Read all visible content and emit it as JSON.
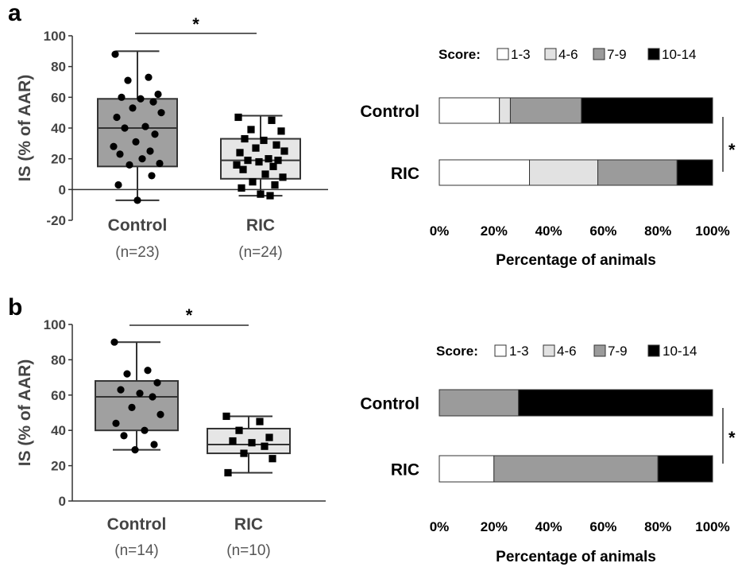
{
  "panels": [
    {
      "letter": "a",
      "significance": "*",
      "stacked_significance": "*",
      "chart_data": [
        {
          "type": "box",
          "ylabel": "IS (% of AAR)",
          "ylim": [
            -20,
            100
          ],
          "yticks": [
            -20,
            0,
            20,
            40,
            60,
            80,
            100
          ],
          "categories": [
            {
              "name": "Control",
              "n_label": "(n=23)",
              "fill": "#a0a0a0",
              "marker": "circle",
              "whisker_low": -7,
              "q1": 15,
              "median": 40,
              "q3": 59,
              "whisker_high": 90,
              "points": [
                88,
                73,
                71,
                62,
                60,
                59,
                57,
                53,
                50,
                47,
                41,
                40,
                36,
                31,
                28,
                25,
                23,
                20,
                17,
                16,
                9,
                3,
                -7
              ]
            },
            {
              "name": "RIC",
              "n_label": "(n=24)",
              "fill": "#e6e6e6",
              "marker": "square",
              "whisker_low": -4,
              "q1": 7,
              "median": 19,
              "q3": 33,
              "whisker_high": 48,
              "points": [
                47,
                45,
                39,
                38,
                33,
                32,
                29,
                27,
                25,
                24,
                20,
                19,
                19,
                18,
                16,
                15,
                13,
                10,
                8,
                5,
                3,
                1,
                -3,
                -4
              ]
            }
          ]
        },
        {
          "type": "stacked_bar_horizontal",
          "legend_title": "Score:",
          "legend": [
            "1-3",
            "4-6",
            "7-9",
            "10-14"
          ],
          "legend_colors": [
            "#ffffff",
            "#e2e2e2",
            "#9b9b9b",
            "#000000"
          ],
          "categories": [
            "Control",
            "RIC"
          ],
          "xticks": [
            "0%",
            "20%",
            "40%",
            "60%",
            "80%",
            "100%"
          ],
          "xlabel": "Percentage of animals",
          "xlim": [
            0,
            100
          ],
          "series": [
            {
              "name": "1-3",
              "values": [
                22,
                33
              ]
            },
            {
              "name": "4-6",
              "values": [
                4,
                25
              ]
            },
            {
              "name": "7-9",
              "values": [
                26,
                29
              ]
            },
            {
              "name": "10-14",
              "values": [
                48,
                13
              ]
            }
          ]
        }
      ]
    },
    {
      "letter": "b",
      "significance": "*",
      "stacked_significance": "*",
      "chart_data": [
        {
          "type": "box",
          "ylabel": "IS (% of AAR)",
          "ylim": [
            0,
            100
          ],
          "yticks": [
            0,
            20,
            40,
            60,
            80,
            100
          ],
          "categories": [
            {
              "name": "Control",
              "n_label": "(n=14)",
              "fill": "#a0a0a0",
              "marker": "circle",
              "whisker_low": 29,
              "q1": 40,
              "median": 59,
              "q3": 68,
              "whisker_high": 90,
              "points": [
                90,
                74,
                72,
                67,
                63,
                61,
                59,
                53,
                49,
                44,
                40,
                37,
                32,
                29
              ]
            },
            {
              "name": "RIC",
              "n_label": "(n=10)",
              "fill": "#e6e6e6",
              "marker": "square",
              "whisker_low": 16,
              "q1": 27,
              "median": 32,
              "q3": 41,
              "whisker_high": 48,
              "points": [
                48,
                45,
                40,
                36,
                34,
                33,
                31,
                27,
                24,
                16
              ]
            }
          ]
        },
        {
          "type": "stacked_bar_horizontal",
          "legend_title": "Score:",
          "legend": [
            "1-3",
            "4-6",
            "7-9",
            "10-14"
          ],
          "legend_colors": [
            "#ffffff",
            "#e2e2e2",
            "#9b9b9b",
            "#000000"
          ],
          "categories": [
            "Control",
            "RIC"
          ],
          "xticks": [
            "0%",
            "20%",
            "40%",
            "60%",
            "80%",
            "100%"
          ],
          "xlabel": "Percentage of animals",
          "xlim": [
            0,
            100
          ],
          "series": [
            {
              "name": "1-3",
              "values": [
                0,
                20
              ]
            },
            {
              "name": "4-6",
              "values": [
                0,
                0
              ]
            },
            {
              "name": "7-9",
              "values": [
                29,
                60
              ]
            },
            {
              "name": "10-14",
              "values": [
                71,
                20
              ]
            }
          ]
        }
      ]
    }
  ]
}
